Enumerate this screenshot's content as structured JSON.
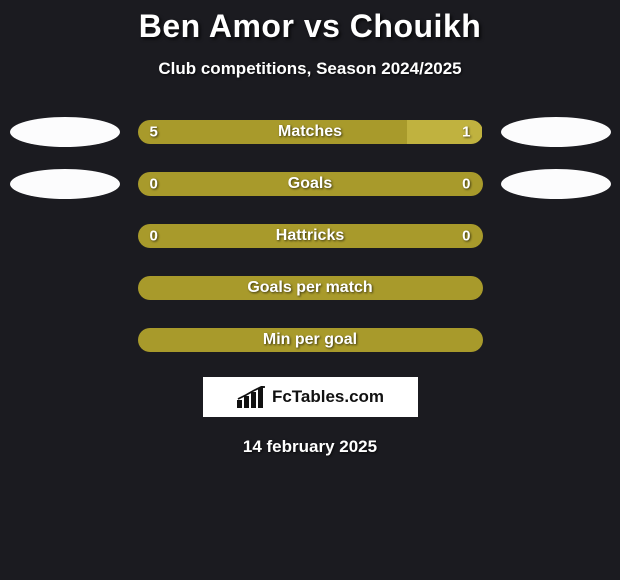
{
  "title": "Ben Amor vs Chouikh",
  "subtitle": "Club competitions, Season 2024/2025",
  "date": "14 february 2025",
  "logo_text": "FcTables.com",
  "colors": {
    "background": "#1b1b20",
    "bar_primary": "#a89a2b",
    "bar_right_seg": "#c0b23f",
    "text": "#ffffff",
    "oval": "#fcfcfd"
  },
  "rows": [
    {
      "label": "Matches",
      "left_val": "5",
      "right_val": "1",
      "left_w": 78,
      "right_w": 22,
      "left_color": "#a89a2b",
      "right_color": "#c0b23f",
      "show_left_oval": true,
      "show_right_oval": true
    },
    {
      "label": "Goals",
      "left_val": "0",
      "right_val": "0",
      "left_w": 100,
      "right_w": 0,
      "left_color": "#a89a2b",
      "right_color": "#c0b23f",
      "show_left_oval": true,
      "show_right_oval": true
    },
    {
      "label": "Hattricks",
      "left_val": "0",
      "right_val": "0",
      "left_w": 100,
      "right_w": 0,
      "left_color": "#a89a2b",
      "right_color": "#c0b23f",
      "show_left_oval": false,
      "show_right_oval": false
    },
    {
      "label": "Goals per match",
      "left_val": "",
      "right_val": "",
      "left_w": 100,
      "right_w": 0,
      "left_color": "#a89a2b",
      "right_color": "#c0b23f",
      "show_left_oval": false,
      "show_right_oval": false
    },
    {
      "label": "Min per goal",
      "left_val": "",
      "right_val": "",
      "left_w": 100,
      "right_w": 0,
      "left_color": "#a89a2b",
      "right_color": "#c0b23f",
      "show_left_oval": false,
      "show_right_oval": false
    }
  ]
}
